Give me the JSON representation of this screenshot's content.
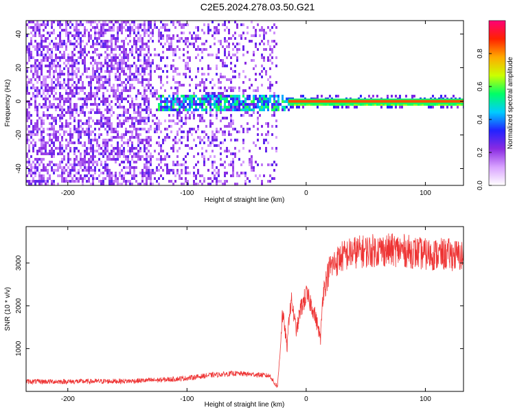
{
  "title": "C2E5.2024.278.03.50.G21",
  "chart_data": [
    {
      "type": "heatmap",
      "xlabel": "Height of straight line (km)",
      "ylabel": "Frequency (Hz)",
      "xlim": [
        -235,
        132
      ],
      "ylim": [
        -50,
        48
      ],
      "x_ticks": [
        -200,
        -100,
        0,
        100
      ],
      "x_tick_labels": [
        "-200",
        "-100",
        "0",
        "100"
      ],
      "y_ticks": [
        -40,
        -20,
        0,
        20,
        40
      ],
      "y_tick_labels": [
        "-40",
        "-20",
        "0",
        "20",
        "40"
      ],
      "grid": false,
      "colorbar": {
        "label": "Normalized spectral amplitude",
        "range": [
          0,
          1
        ],
        "ticks": [
          0.0,
          0.2,
          0.4,
          0.6,
          0.8
        ],
        "tick_labels": [
          "0.0",
          "0.2",
          "0.4",
          "0.6",
          "0.8"
        ],
        "colors": [
          "#ffffff",
          "#d9a3ff",
          "#8a2be2",
          "#2222ff",
          "#00ccff",
          "#00ff66",
          "#ccff00",
          "#ffaa00",
          "#ff2200",
          "#ff0077"
        ]
      },
      "features": {
        "noise_region_x": [
          -235,
          -25
        ],
        "signal_band_center_hz": 0,
        "signal_onset_x": -125,
        "strong_tone_start_x": -15
      }
    },
    {
      "type": "line",
      "xlabel": "Height of straight line (km)",
      "ylabel": "SNR (10 * v/v)",
      "xlim": [
        -235,
        132
      ],
      "ylim": [
        0,
        3850
      ],
      "x_ticks": [
        -200,
        -100,
        0,
        100
      ],
      "x_tick_labels": [
        "-200",
        "-100",
        "0",
        "100"
      ],
      "y_ticks": [
        1000,
        2000,
        3000
      ],
      "y_tick_labels": [
        "1000",
        "2000",
        "3000"
      ],
      "grid": false,
      "series_color": "#ee3333",
      "x": [
        -235,
        -200,
        -150,
        -120,
        -100,
        -80,
        -60,
        -40,
        -30,
        -27,
        -24,
        -22,
        -20,
        -18,
        -16,
        -14,
        -12,
        -10,
        -8,
        -5,
        0,
        5,
        10,
        12,
        14,
        20,
        30,
        40,
        60,
        80,
        100,
        120,
        132
      ],
      "y": [
        230,
        230,
        240,
        270,
        310,
        380,
        420,
        390,
        360,
        200,
        120,
        900,
        1800,
        1500,
        1000,
        1900,
        2100,
        1700,
        1400,
        1900,
        2250,
        2000,
        1500,
        1200,
        2300,
        2900,
        3150,
        3250,
        3300,
        3300,
        3200,
        3200,
        3150
      ]
    }
  ]
}
